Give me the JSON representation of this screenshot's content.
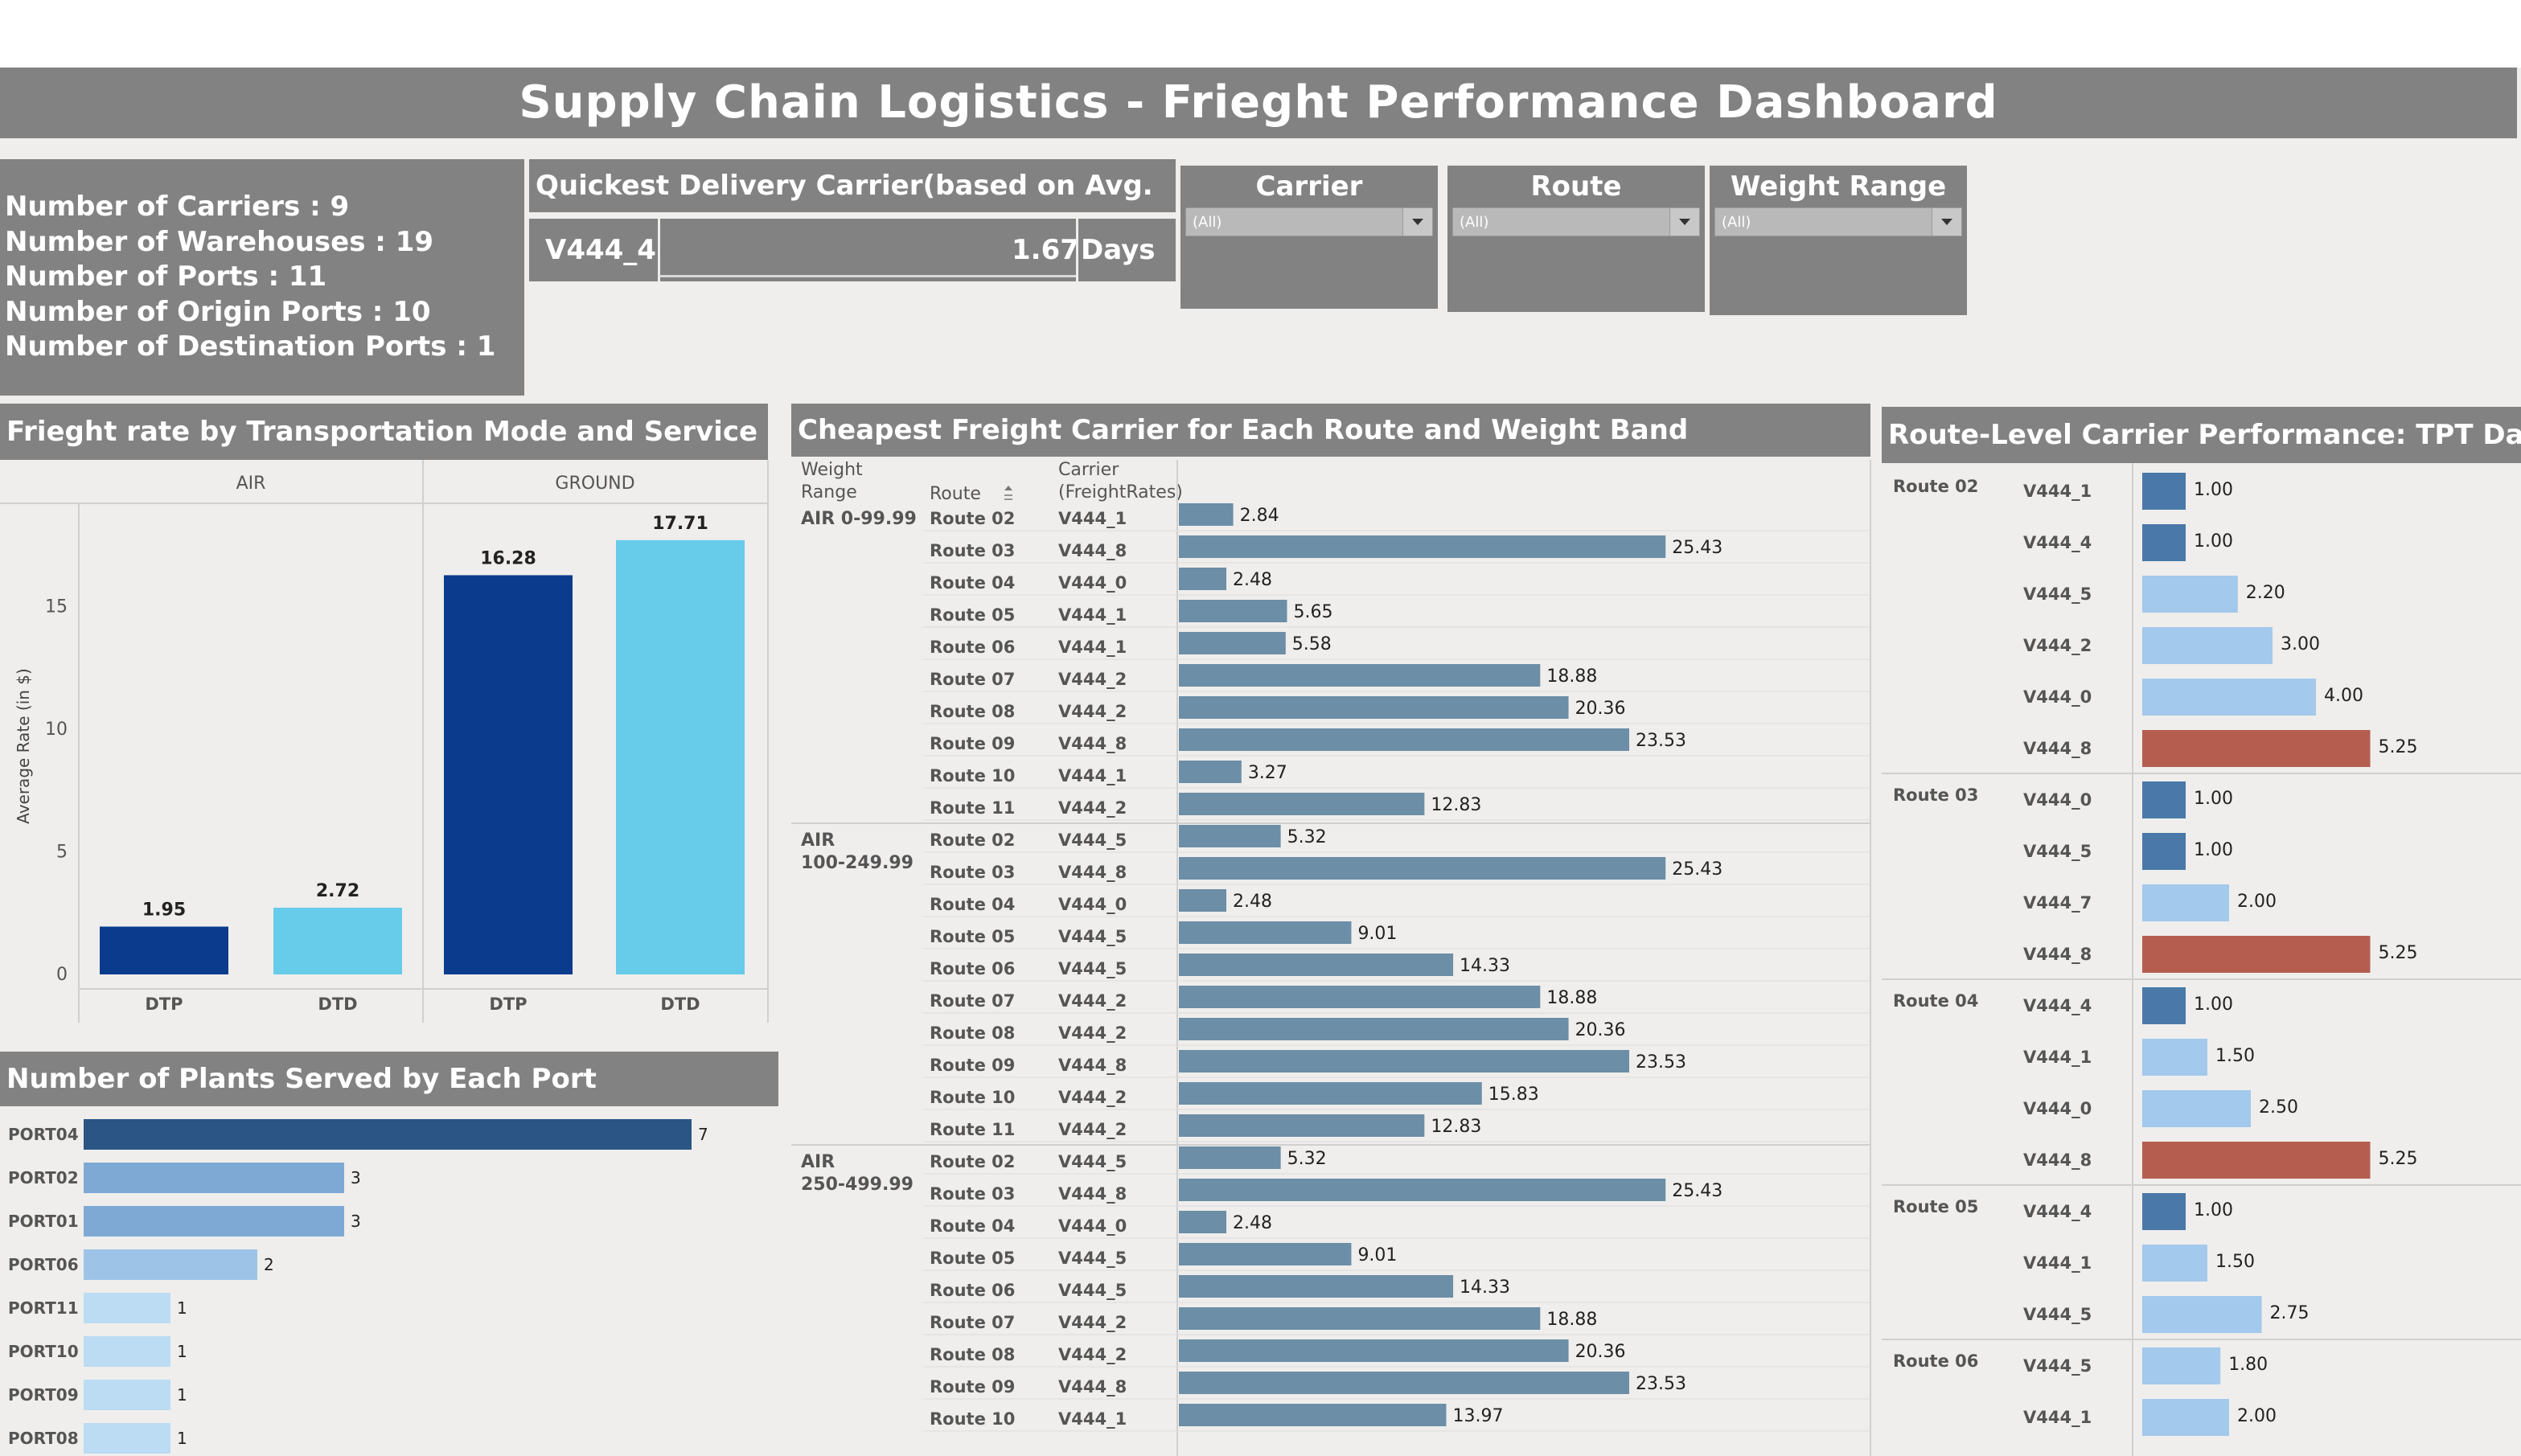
{
  "header": {
    "title": "Supply Chain Logistics - Frieght Performance Dashboard"
  },
  "kpis": [
    "Number of Carriers : 9",
    "Number of Warehouses : 19",
    "Number of Ports : 11",
    "Number of Origin Ports : 10",
    "Number of Destination Ports : 1"
  ],
  "quickest": {
    "title": "Quickest Delivery Carrier(based on Avg. TPT)",
    "carrier": "V444_4",
    "value": "1.67",
    "unit": "Days"
  },
  "filters": [
    {
      "title": "Carrier",
      "value": "(All)"
    },
    {
      "title": "Route",
      "value": "(All)"
    },
    {
      "title": "Weight Range",
      "value": "(All)"
    }
  ],
  "rate_panel": {
    "title": "Frieght rate by Transportation Mode and Service Level",
    "groups": [
      "AIR",
      "GROUND"
    ],
    "ylabel": "Average Rate (in $)",
    "yticks": [
      "0",
      "5",
      "10",
      "15"
    ]
  },
  "plants_panel": {
    "title": "Number of Plants Served by Each Port"
  },
  "cheapest_panel": {
    "title": "Cheapest Freight Carrier for Each Route and Weight Band",
    "col_weight_1": "Weight",
    "col_weight_2": "Range",
    "col_route": "Route",
    "col_carrier_1": "Carrier",
    "col_carrier_2": "(FreightRates)",
    "sort_icon": "sort-icon"
  },
  "tpt_panel": {
    "title": "Route-Level Carrier Performance: TPT Day Count"
  },
  "chart_data": [
    {
      "type": "bar",
      "title": "Frieght rate by Transportation Mode and Service Level",
      "ylabel": "Average Rate (in $)",
      "ylim": [
        0,
        19
      ],
      "groups": [
        {
          "name": "AIR",
          "categories": [
            "DTP",
            "DTD"
          ],
          "values": [
            1.95,
            2.72
          ]
        },
        {
          "name": "GROUND",
          "categories": [
            "DTP",
            "DTD"
          ],
          "values": [
            16.28,
            17.71
          ]
        }
      ],
      "colors": {
        "DTP": "#0a3b8c",
        "DTD": "#66ccea"
      }
    },
    {
      "type": "bar",
      "title": "Number of Plants Served by Each Port",
      "categories": [
        "PORT04",
        "PORT02",
        "PORT01",
        "PORT06",
        "PORT11",
        "PORT10",
        "PORT09",
        "PORT08"
      ],
      "values": [
        7,
        3,
        3,
        2,
        1,
        1,
        1,
        1
      ],
      "colors": {
        "7": "#2b5585",
        "3": "#7ea9d4",
        "2": "#9dc4e6",
        "1": "#bbdcf2"
      }
    },
    {
      "type": "bar",
      "title": "Cheapest Freight Carrier for Each Route and Weight Band",
      "bands": [
        {
          "weight": [
            "AIR 0-99.99"
          ],
          "rows": [
            {
              "route": "Route 02",
              "carrier": "V444_1",
              "value": 2.84
            },
            {
              "route": "Route 03",
              "carrier": "V444_8",
              "value": 25.43
            },
            {
              "route": "Route 04",
              "carrier": "V444_0",
              "value": 2.48
            },
            {
              "route": "Route 05",
              "carrier": "V444_1",
              "value": 5.65
            },
            {
              "route": "Route 06",
              "carrier": "V444_1",
              "value": 5.58
            },
            {
              "route": "Route 07",
              "carrier": "V444_2",
              "value": 18.88
            },
            {
              "route": "Route 08",
              "carrier": "V444_2",
              "value": 20.36
            },
            {
              "route": "Route 09",
              "carrier": "V444_8",
              "value": 23.53
            },
            {
              "route": "Route 10",
              "carrier": "V444_1",
              "value": 3.27
            },
            {
              "route": "Route 11",
              "carrier": "V444_2",
              "value": 12.83
            }
          ]
        },
        {
          "weight": [
            "AIR",
            "100-249.99"
          ],
          "rows": [
            {
              "route": "Route 02",
              "carrier": "V444_5",
              "value": 5.32
            },
            {
              "route": "Route 03",
              "carrier": "V444_8",
              "value": 25.43
            },
            {
              "route": "Route 04",
              "carrier": "V444_0",
              "value": 2.48
            },
            {
              "route": "Route 05",
              "carrier": "V444_5",
              "value": 9.01
            },
            {
              "route": "Route 06",
              "carrier": "V444_5",
              "value": 14.33
            },
            {
              "route": "Route 07",
              "carrier": "V444_2",
              "value": 18.88
            },
            {
              "route": "Route 08",
              "carrier": "V444_2",
              "value": 20.36
            },
            {
              "route": "Route 09",
              "carrier": "V444_8",
              "value": 23.53
            },
            {
              "route": "Route 10",
              "carrier": "V444_2",
              "value": 15.83
            },
            {
              "route": "Route 11",
              "carrier": "V444_2",
              "value": 12.83
            }
          ]
        },
        {
          "weight": [
            "AIR",
            "250-499.99"
          ],
          "rows": [
            {
              "route": "Route 02",
              "carrier": "V444_5",
              "value": 5.32
            },
            {
              "route": "Route 03",
              "carrier": "V444_8",
              "value": 25.43
            },
            {
              "route": "Route 04",
              "carrier": "V444_0",
              "value": 2.48
            },
            {
              "route": "Route 05",
              "carrier": "V444_5",
              "value": 9.01
            },
            {
              "route": "Route 06",
              "carrier": "V444_5",
              "value": 14.33
            },
            {
              "route": "Route 07",
              "carrier": "V444_2",
              "value": 18.88
            },
            {
              "route": "Route 08",
              "carrier": "V444_2",
              "value": 20.36
            },
            {
              "route": "Route 09",
              "carrier": "V444_8",
              "value": 23.53
            },
            {
              "route": "Route 10",
              "carrier": "V444_1",
              "value": 13.97
            }
          ]
        }
      ],
      "xlim": [
        0,
        27.5
      ],
      "colors": {
        "bar": "#6c8ea6"
      }
    },
    {
      "type": "bar",
      "title": "Route-Level Carrier Performance: TPT Day Count",
      "groups": [
        {
          "route": "Route 02",
          "rows": [
            {
              "carrier": "V444_1",
              "value": 1.0
            },
            {
              "carrier": "V444_4",
              "value": 1.0
            },
            {
              "carrier": "V444_5",
              "value": 2.2
            },
            {
              "carrier": "V444_2",
              "value": 3.0
            },
            {
              "carrier": "V444_0",
              "value": 4.0
            },
            {
              "carrier": "V444_8",
              "value": 5.25
            }
          ]
        },
        {
          "route": "Route 03",
          "rows": [
            {
              "carrier": "V444_0",
              "value": 1.0
            },
            {
              "carrier": "V444_5",
              "value": 1.0
            },
            {
              "carrier": "V444_7",
              "value": 2.0
            },
            {
              "carrier": "V444_8",
              "value": 5.25
            }
          ]
        },
        {
          "route": "Route 04",
          "rows": [
            {
              "carrier": "V444_4",
              "value": 1.0
            },
            {
              "carrier": "V444_1",
              "value": 1.5
            },
            {
              "carrier": "V444_0",
              "value": 2.5
            },
            {
              "carrier": "V444_8",
              "value": 5.25
            }
          ]
        },
        {
          "route": "Route 05",
          "rows": [
            {
              "carrier": "V444_4",
              "value": 1.0
            },
            {
              "carrier": "V444_1",
              "value": 1.5
            },
            {
              "carrier": "V444_5",
              "value": 2.75
            }
          ]
        },
        {
          "route": "Route 06",
          "rows": [
            {
              "carrier": "V444_5",
              "value": 1.8
            },
            {
              "carrier": "V444_1",
              "value": 2.0
            }
          ]
        }
      ],
      "colors": {
        "fast": "#4a78a8",
        "mid": "#a3c9ec",
        "slow": "#b55e50"
      }
    }
  ]
}
